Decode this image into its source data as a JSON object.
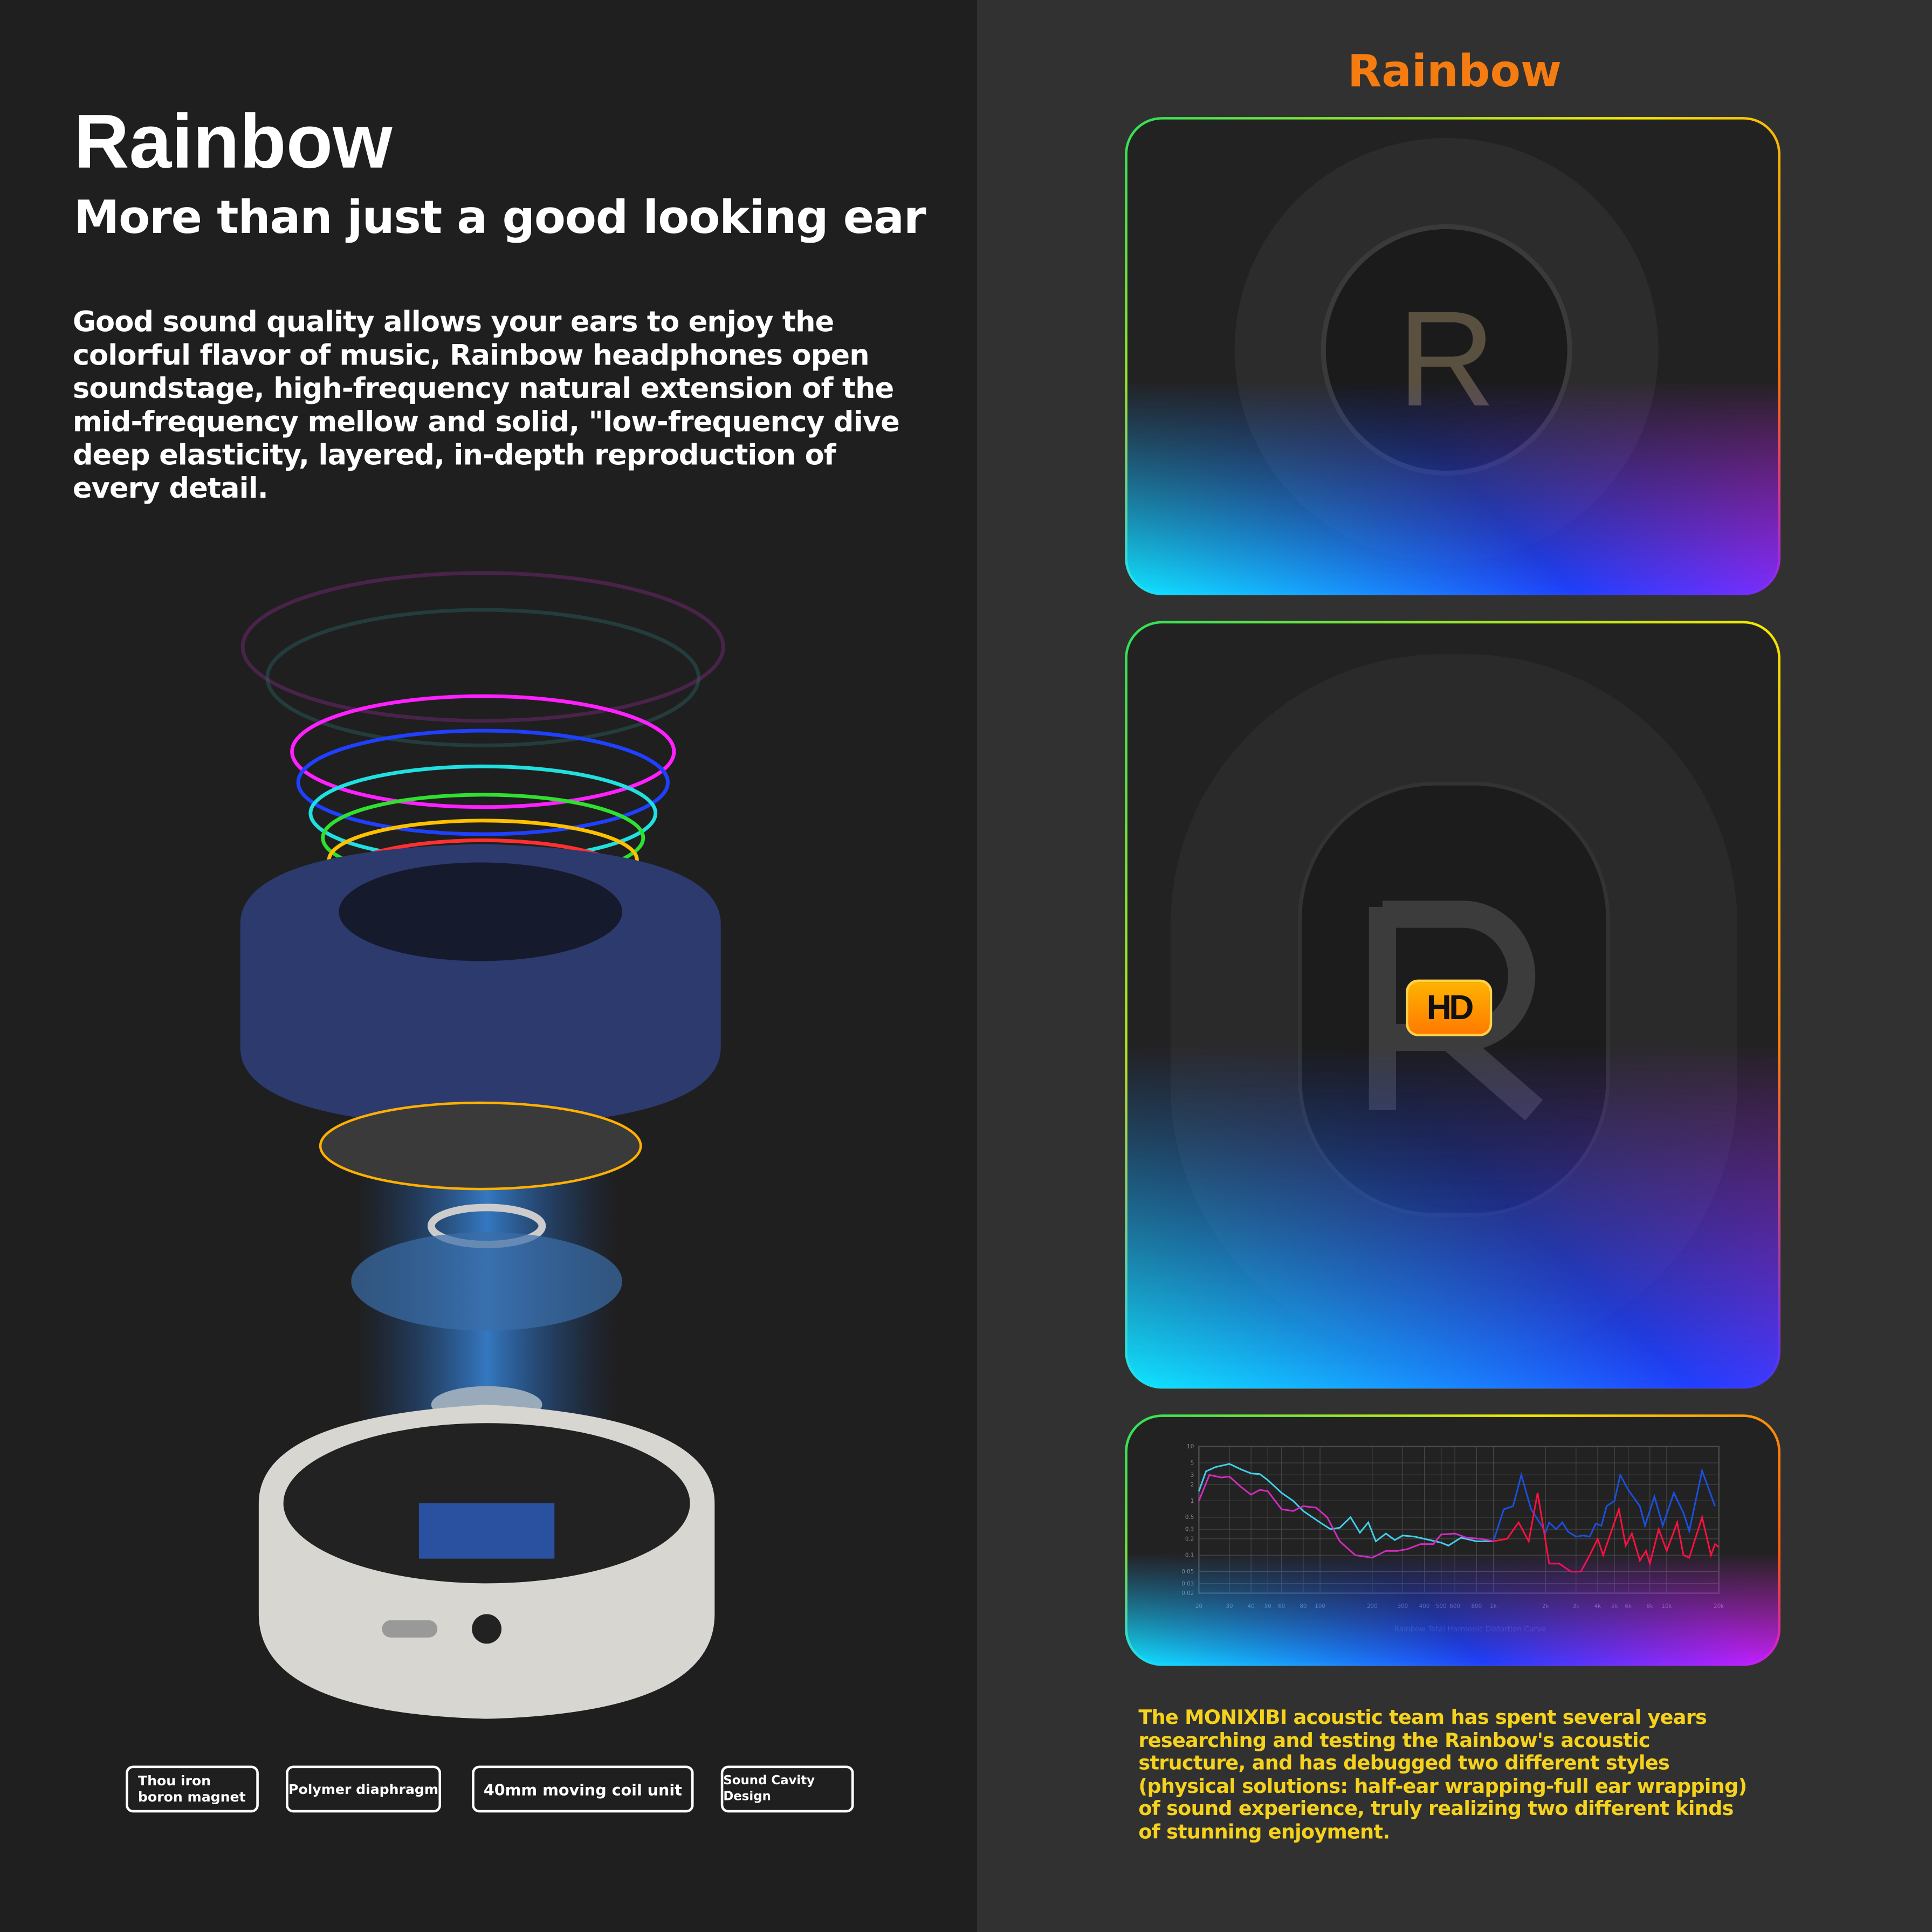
{
  "left": {
    "title": "Rainbow",
    "subtitle": "More than just a good looking ear",
    "description": "Good sound quality allows your ears to enjoy the colorful flavor of music, Rainbow headphones open soundstage, high-frequency natural extension of the mid-frequency mellow and solid, \"low-frequency dive deep elasticity, layered, in-depth reproduction of every detail.",
    "feature_labels": [
      "Thou iron boron magnet",
      "Polymer diaphragm",
      "40mm moving coil unit",
      "Sound Cavity Design"
    ]
  },
  "right": {
    "title": "Rainbow",
    "earpad_letter": "R",
    "hd_badge": "HD",
    "description": "The MONIXIBI acoustic team has spent several years researching and testing the Rainbow's acoustic structure, and has debugged two different styles (physical solutions: half-ear wrapping-full ear wrapping) of sound experience, truly realizing two different kinds of stunning enjoyment."
  },
  "colors": {
    "accent_orange": "#f57c10",
    "yellow_text": "#f5d21c",
    "series_a_low": "#3fd0e8",
    "series_a_high": "#1a4fe0",
    "series_b_low": "#d22cc0",
    "series_b_high": "#ff1040"
  },
  "chart_data": {
    "type": "line",
    "title": "Rainbow Total Harmonic Distortion Curve",
    "x_scale": "log",
    "y_scale": "log",
    "xlim": [
      20,
      20000
    ],
    "ylim": [
      0.02,
      10
    ],
    "grid": true,
    "x_ticks": [
      "20",
      "30",
      "40",
      "50",
      "60",
      "80",
      "100",
      "200",
      "300",
      "400",
      "500",
      "600",
      "800",
      "1k",
      "2k",
      "3k",
      "4k",
      "5k",
      "6k",
      "8k",
      "10k",
      "20k"
    ],
    "x_tick_values": [
      20,
      30,
      40,
      50,
      60,
      80,
      100,
      200,
      300,
      400,
      500,
      600,
      800,
      1000,
      2000,
      3000,
      4000,
      5000,
      6000,
      8000,
      10000,
      20000
    ],
    "y_ticks": [
      "10",
      "5",
      "3",
      "2",
      "1",
      "0.5",
      "0.3",
      "0.2",
      "0.1",
      "0.05",
      "0.03",
      "0.02"
    ],
    "y_tick_values": [
      10,
      5,
      3,
      2,
      1,
      0.5,
      0.3,
      0.2,
      0.1,
      0.05,
      0.03,
      0.02
    ],
    "series": [
      {
        "x": [
          20,
          22,
          25,
          30,
          35,
          40,
          45,
          50,
          60,
          70,
          80,
          100,
          115,
          130,
          150,
          170,
          190,
          210,
          240,
          270,
          300,
          350,
          400,
          500,
          550,
          650,
          800,
          1000,
          1150,
          1300,
          1450,
          1650,
          1900,
          2000,
          2100,
          2300,
          2500,
          2700,
          3000,
          3300,
          3600,
          3900,
          4200,
          4500,
          5000,
          5400,
          6000,
          7000,
          7500,
          8500,
          9500,
          11000,
          12500,
          13500,
          16000,
          19000
        ],
        "y": [
          1.5,
          3.5,
          4.2,
          4.8,
          3.8,
          3.2,
          3.1,
          2.4,
          1.4,
          1.0,
          0.65,
          0.4,
          0.3,
          0.32,
          0.5,
          0.26,
          0.4,
          0.18,
          0.25,
          0.19,
          0.23,
          0.22,
          0.2,
          0.17,
          0.15,
          0.21,
          0.18,
          0.18,
          0.7,
          0.8,
          3.0,
          0.7,
          0.35,
          0.26,
          0.4,
          0.3,
          0.4,
          0.27,
          0.22,
          0.23,
          0.22,
          0.38,
          0.35,
          0.8,
          1.0,
          3.0,
          1.6,
          0.8,
          0.35,
          1.2,
          0.35,
          1.4,
          0.6,
          0.28,
          3.6,
          0.8
        ]
      },
      {
        "x": [
          20,
          23,
          27,
          30,
          35,
          40,
          45,
          50,
          60,
          70,
          80,
          95,
          110,
          130,
          160,
          200,
          240,
          280,
          320,
          380,
          450,
          500,
          600,
          700,
          850,
          1000,
          1200,
          1400,
          1600,
          1800,
          1950,
          2100,
          2400,
          2800,
          3200,
          3600,
          4000,
          4300,
          5300,
          5800,
          6300,
          7000,
          7600,
          8000,
          9000,
          10000,
          11500,
          12500,
          13500,
          16000,
          18000,
          19000,
          20000
        ],
        "y": [
          1.0,
          3.0,
          2.7,
          2.8,
          1.8,
          1.3,
          1.6,
          1.5,
          0.7,
          0.65,
          0.8,
          0.75,
          0.5,
          0.18,
          0.1,
          0.09,
          0.12,
          0.12,
          0.13,
          0.16,
          0.16,
          0.24,
          0.25,
          0.21,
          0.2,
          0.18,
          0.2,
          0.4,
          0.18,
          1.4,
          0.3,
          0.07,
          0.07,
          0.05,
          0.05,
          0.1,
          0.2,
          0.1,
          0.7,
          0.15,
          0.25,
          0.08,
          0.12,
          0.07,
          0.3,
          0.12,
          0.4,
          0.1,
          0.09,
          0.5,
          0.1,
          0.16,
          0.14
        ]
      }
    ]
  }
}
